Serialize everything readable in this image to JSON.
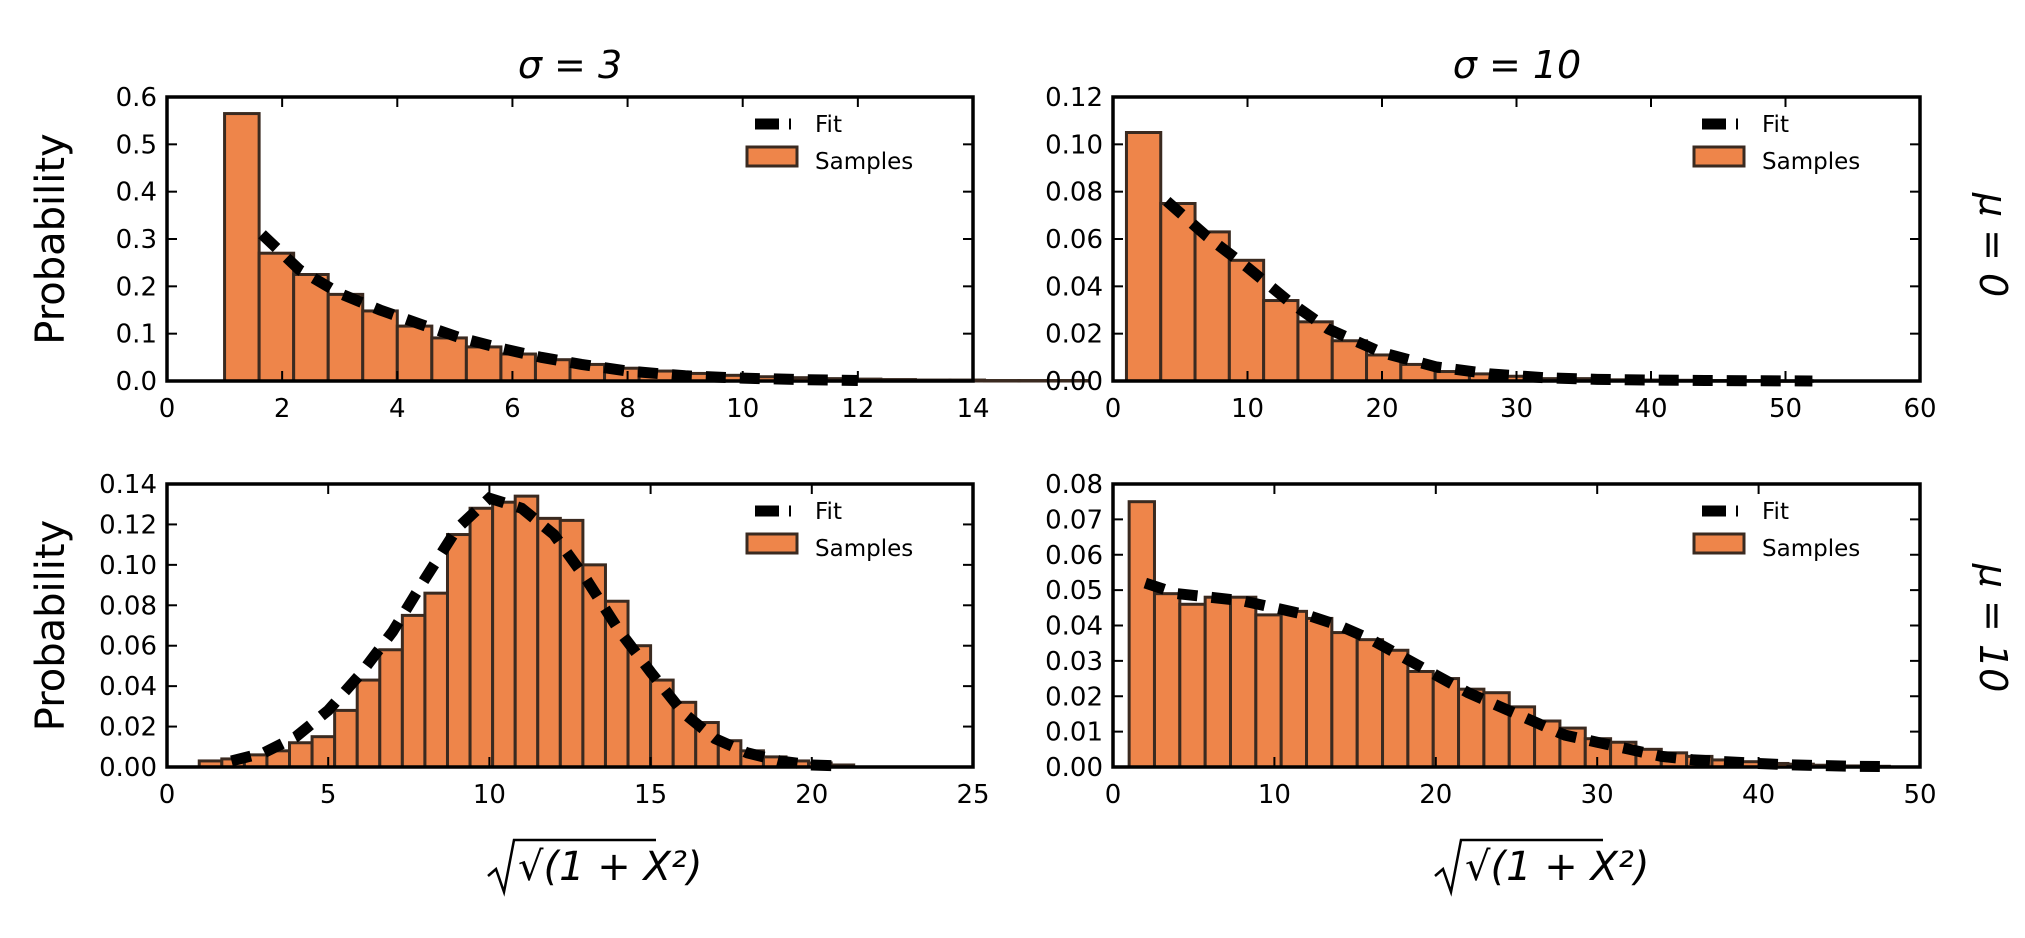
{
  "figure": {
    "column_titles": [
      "σ = 3",
      "σ = 10"
    ],
    "row_titles": [
      "μ = 0",
      "μ = 10"
    ],
    "xlabel": "√(1 + X²)"
  },
  "colors": {
    "bar_fill": "#EE854A",
    "bar_edge": "#3a2a20",
    "fit_line": "#000000",
    "axes": "#000000"
  },
  "chart_data": [
    {
      "type": "bar",
      "panel": "top-left",
      "title": "σ = 3",
      "xlabel": "",
      "ylabel": "Probability",
      "row_label": "",
      "xlim": [
        0,
        14
      ],
      "ylim": [
        0,
        0.6
      ],
      "xticks": [
        0,
        2,
        4,
        6,
        8,
        10,
        12,
        14
      ],
      "yticks": [
        0.0,
        0.1,
        0.2,
        0.3,
        0.4,
        0.5,
        0.6
      ],
      "xtick_labels": [
        "0",
        "2",
        "4",
        "6",
        "8",
        "10",
        "12",
        "14"
      ],
      "ytick_labels": [
        "0.0",
        "0.1",
        "0.2",
        "0.3",
        "0.4",
        "0.5",
        "0.6"
      ],
      "legend": {
        "fit": "Fit",
        "samples": "Samples",
        "position": "upper right"
      },
      "bins": {
        "start": 1.0,
        "width": 0.6
      },
      "values": [
        0.565,
        0.27,
        0.225,
        0.183,
        0.148,
        0.116,
        0.091,
        0.072,
        0.057,
        0.045,
        0.035,
        0.027,
        0.021,
        0.016,
        0.012,
        0.009,
        0.007,
        0.005,
        0.004,
        0.003,
        0.002,
        0.002,
        0.001,
        0.001,
        0.001,
        0.0,
        0.0,
        0.0,
        0.0,
        0.0
      ],
      "fit": {
        "x": [
          1.65,
          2.3,
          3.0,
          3.7,
          4.4,
          5.1,
          5.8,
          6.5,
          7.2,
          8.0,
          9.0,
          10.0,
          11.0,
          12.0
        ],
        "y": [
          0.31,
          0.235,
          0.185,
          0.15,
          0.12,
          0.091,
          0.069,
          0.05,
          0.035,
          0.021,
          0.011,
          0.006,
          0.003,
          0.001
        ]
      }
    },
    {
      "type": "bar",
      "panel": "top-right",
      "title": "σ = 10",
      "xlabel": "",
      "ylabel": "",
      "row_label": "μ = 0",
      "xlim": [
        0,
        60
      ],
      "ylim": [
        0,
        0.12
      ],
      "xticks": [
        0,
        10,
        20,
        30,
        40,
        50,
        60
      ],
      "yticks": [
        0.0,
        0.02,
        0.04,
        0.06,
        0.08,
        0.1,
        0.12
      ],
      "xtick_labels": [
        "0",
        "10",
        "20",
        "30",
        "40",
        "50",
        "60"
      ],
      "ytick_labels": [
        "0.00",
        "0.02",
        "0.04",
        "0.06",
        "0.08",
        "0.10",
        "0.12"
      ],
      "legend": {
        "fit": "Fit",
        "samples": "Samples",
        "position": "upper right"
      },
      "bins": {
        "start": 1.0,
        "width": 2.55
      },
      "values": [
        0.105,
        0.075,
        0.063,
        0.051,
        0.034,
        0.025,
        0.017,
        0.011,
        0.007,
        0.004,
        0.003,
        0.002,
        0.001,
        0.001,
        0.0005,
        0.0004,
        0.0003,
        0.0002,
        0.0002,
        0.0001
      ],
      "fit": {
        "x": [
          4.0,
          7.0,
          10.0,
          13.0,
          16.0,
          20.0,
          24.0,
          28.0,
          32.0,
          36.0,
          40.0,
          44.0,
          48.0,
          52.0
        ],
        "y": [
          0.076,
          0.061,
          0.048,
          0.034,
          0.022,
          0.012,
          0.006,
          0.003,
          0.0014,
          0.0007,
          0.0004,
          0.0002,
          0.0001,
          0.0
        ]
      }
    },
    {
      "type": "bar",
      "panel": "bottom-left",
      "title": "",
      "xlabel": "√(1 + X²)",
      "ylabel": "Probability",
      "row_label": "",
      "xlim": [
        0,
        25
      ],
      "ylim": [
        0,
        0.14
      ],
      "xticks": [
        0,
        5,
        10,
        15,
        20,
        25
      ],
      "yticks": [
        0.0,
        0.02,
        0.04,
        0.06,
        0.08,
        0.1,
        0.12,
        0.14
      ],
      "xtick_labels": [
        "0",
        "5",
        "10",
        "15",
        "20",
        "25"
      ],
      "ytick_labels": [
        "0.00",
        "0.02",
        "0.04",
        "0.06",
        "0.08",
        "0.10",
        "0.12",
        "0.14"
      ],
      "legend": {
        "fit": "Fit",
        "samples": "Samples",
        "position": "upper right"
      },
      "bins": {
        "start": 1.0,
        "width": 0.7
      },
      "values": [
        0.003,
        0.004,
        0.006,
        0.008,
        0.012,
        0.015,
        0.028,
        0.043,
        0.058,
        0.075,
        0.086,
        0.115,
        0.128,
        0.131,
        0.134,
        0.123,
        0.122,
        0.1,
        0.082,
        0.06,
        0.043,
        0.032,
        0.022,
        0.013,
        0.008,
        0.005,
        0.003,
        0.002,
        0.001,
        0.0
      ],
      "fit": {
        "x": [
          2.0,
          3.0,
          4.0,
          5.0,
          6.0,
          7.0,
          8.0,
          9.0,
          10.0,
          11.0,
          12.0,
          13.0,
          14.0,
          15.0,
          16.0,
          17.0,
          18.0,
          19.0,
          20.0,
          21.0
        ],
        "y": [
          0.003,
          0.007,
          0.015,
          0.028,
          0.046,
          0.067,
          0.093,
          0.118,
          0.133,
          0.128,
          0.115,
          0.093,
          0.068,
          0.047,
          0.027,
          0.014,
          0.007,
          0.003,
          0.001,
          0.0005
        ]
      }
    },
    {
      "type": "bar",
      "panel": "bottom-right",
      "title": "",
      "xlabel": "√(1 + X²)",
      "ylabel": "",
      "row_label": "μ = 10",
      "xlim": [
        0,
        50
      ],
      "ylim": [
        0,
        0.08
      ],
      "xticks": [
        0,
        10,
        20,
        30,
        40,
        50
      ],
      "yticks": [
        0.0,
        0.01,
        0.02,
        0.03,
        0.04,
        0.05,
        0.06,
        0.07,
        0.08
      ],
      "xtick_labels": [
        "0",
        "10",
        "20",
        "30",
        "40",
        "50"
      ],
      "ytick_labels": [
        "0.00",
        "0.01",
        "0.02",
        "0.03",
        "0.04",
        "0.05",
        "0.06",
        "0.07",
        "0.08"
      ],
      "legend": {
        "fit": "Fit",
        "samples": "Samples",
        "position": "upper right"
      },
      "bins": {
        "start": 1.0,
        "width": 1.57
      },
      "values": [
        0.075,
        0.049,
        0.046,
        0.048,
        0.048,
        0.043,
        0.044,
        0.042,
        0.038,
        0.036,
        0.033,
        0.027,
        0.025,
        0.022,
        0.021,
        0.017,
        0.013,
        0.011,
        0.008,
        0.007,
        0.005,
        0.004,
        0.003,
        0.002,
        0.0015,
        0.001,
        0.0008,
        0.0005,
        0.0003,
        0.0002
      ],
      "fit": {
        "x": [
          2.0,
          4.0,
          6.0,
          8.0,
          10.0,
          12.0,
          14.0,
          16.0,
          18.0,
          20.0,
          22.0,
          24.0,
          26.0,
          28.0,
          30.0,
          32.0,
          34.0,
          36.0,
          38.0,
          40.0,
          42.0,
          44.0,
          46.0,
          48.0
        ],
        "y": [
          0.052,
          0.049,
          0.048,
          0.047,
          0.045,
          0.043,
          0.04,
          0.036,
          0.031,
          0.026,
          0.021,
          0.017,
          0.013,
          0.009,
          0.007,
          0.005,
          0.003,
          0.002,
          0.0015,
          0.001,
          0.0006,
          0.0004,
          0.0002,
          0.0001
        ]
      }
    }
  ]
}
